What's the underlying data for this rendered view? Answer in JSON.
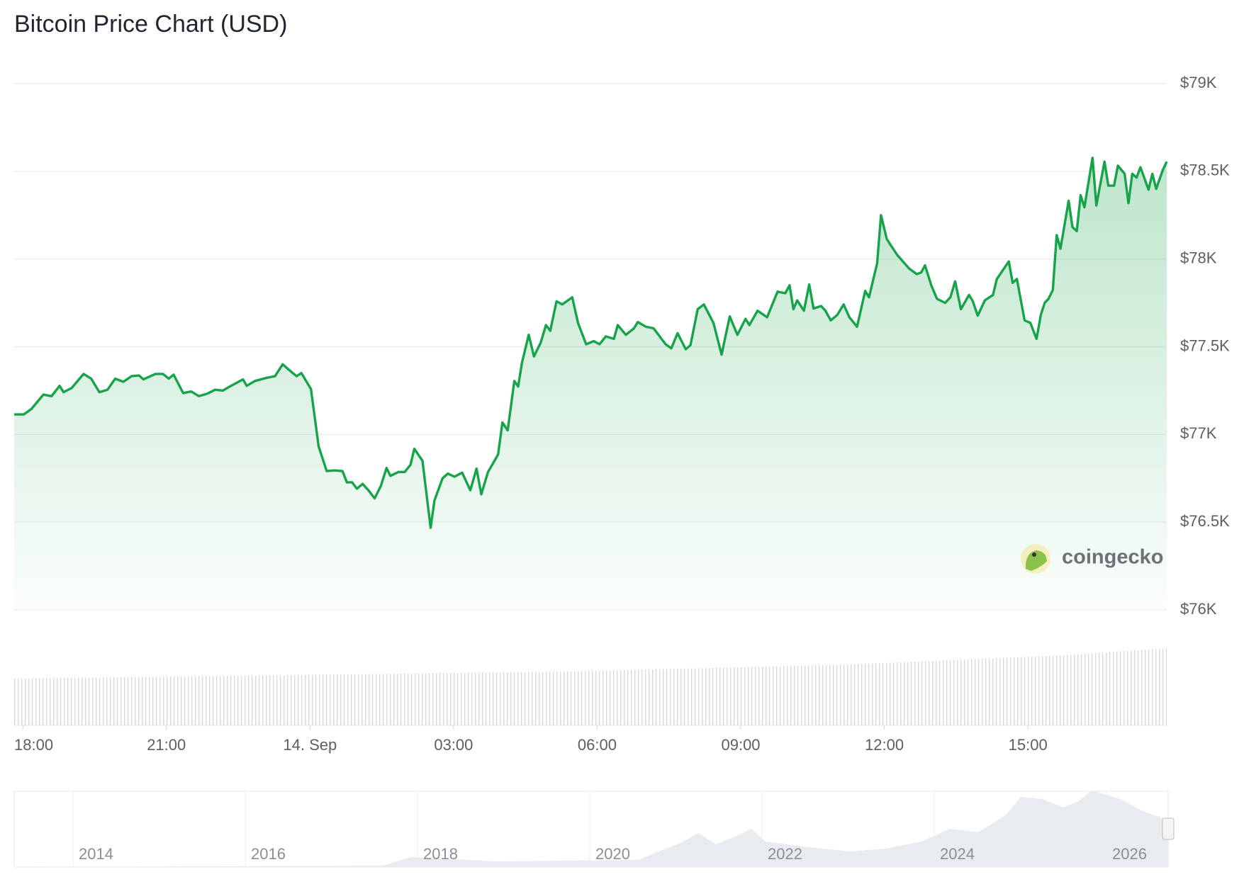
{
  "chart_data": {
    "type": "line",
    "title": "Bitcoin Price Chart (USD)",
    "watermark": "coingecko",
    "xlim": [
      -6.18,
      17.9
    ],
    "xticks": [
      {
        "value": -6,
        "label": "18:00"
      },
      {
        "value": -3,
        "label": "21:00"
      },
      {
        "value": 0,
        "label": "14. Sep"
      },
      {
        "value": 3,
        "label": "03:00"
      },
      {
        "value": 6,
        "label": "06:00"
      },
      {
        "value": 9,
        "label": "09:00"
      },
      {
        "value": 12,
        "label": "12:00"
      },
      {
        "value": 15,
        "label": "15:00"
      }
    ],
    "ylim": [
      76000,
      79000
    ],
    "yticks": [
      {
        "value": 76000,
        "label": "$76K"
      },
      {
        "value": 76500,
        "label": "$76.5K"
      },
      {
        "value": 77000,
        "label": "$77K"
      },
      {
        "value": 77500,
        "label": "$77.5K"
      },
      {
        "value": 78000,
        "label": "$78K"
      },
      {
        "value": 78500,
        "label": "$78.5K"
      },
      {
        "value": 79000,
        "label": "$79K"
      }
    ],
    "grid": true,
    "x": [
      -6.18,
      -5.98,
      -5.82,
      -5.57,
      -5.4,
      -5.23,
      -5.15,
      -4.98,
      -4.73,
      -4.57,
      -4.4,
      -4.23,
      -4.07,
      -3.9,
      -3.73,
      -3.57,
      -3.48,
      -3.23,
      -3.07,
      -2.95,
      -2.85,
      -2.65,
      -2.48,
      -2.32,
      -2.15,
      -1.98,
      -1.82,
      -1.65,
      -1.4,
      -1.32,
      -1.15,
      -0.9,
      -0.73,
      -0.57,
      -0.4,
      -0.28,
      -0.18,
      0.02,
      0.18,
      0.35,
      0.52,
      0.68,
      0.77,
      0.88,
      0.98,
      1.1,
      1.22,
      1.35,
      1.48,
      1.6,
      1.68,
      1.85,
      1.98,
      2.1,
      2.18,
      2.35,
      2.52,
      2.6,
      2.77,
      2.88,
      3.02,
      3.18,
      3.35,
      3.48,
      3.58,
      3.72,
      3.93,
      4.02,
      4.13,
      4.27,
      4.35,
      4.43,
      4.57,
      4.68,
      4.82,
      4.93,
      5.02,
      5.15,
      5.27,
      5.48,
      5.6,
      5.77,
      5.93,
      6.05,
      6.18,
      6.35,
      6.43,
      6.6,
      6.77,
      6.85,
      7.02,
      7.18,
      7.43,
      7.55,
      7.68,
      7.85,
      7.95,
      8.1,
      8.23,
      8.43,
      8.6,
      8.77,
      8.93,
      9.1,
      9.18,
      9.35,
      9.55,
      9.77,
      9.93,
      10.02,
      10.1,
      10.18,
      10.32,
      10.43,
      10.52,
      10.68,
      10.77,
      10.88,
      11.02,
      11.15,
      11.27,
      11.43,
      11.6,
      11.68,
      11.85,
      11.93,
      12.05,
      12.27,
      12.52,
      12.68,
      12.77,
      12.85,
      12.98,
      13.1,
      13.27,
      13.38,
      13.48,
      13.6,
      13.77,
      13.85,
      13.95,
      14.1,
      14.27,
      14.35,
      14.6,
      14.68,
      14.77,
      14.93,
      15.05,
      15.18,
      15.27,
      15.35,
      15.43,
      15.52,
      15.6,
      15.68,
      15.85,
      15.93,
      16.02,
      16.1,
      16.18,
      16.35,
      16.43,
      16.6,
      16.68,
      16.8,
      16.88,
      17.02,
      17.1,
      17.18,
      17.27,
      17.35,
      17.52,
      17.6,
      17.68,
      17.82,
      17.9
    ],
    "series": [
      {
        "name": "Bitcoin",
        "color": "#17a34a",
        "values": [
          77114,
          77114,
          77145,
          77227,
          77218,
          77277,
          77241,
          77264,
          77345,
          77318,
          77241,
          77255,
          77318,
          77300,
          77332,
          77336,
          77314,
          77345,
          77345,
          77318,
          77341,
          77236,
          77245,
          77218,
          77232,
          77255,
          77250,
          77277,
          77314,
          77277,
          77305,
          77323,
          77332,
          77400,
          77359,
          77332,
          77350,
          77259,
          76932,
          76791,
          76795,
          76791,
          76727,
          76727,
          76691,
          76718,
          76682,
          76636,
          76705,
          76809,
          76764,
          76786,
          76786,
          76827,
          76918,
          76850,
          76468,
          76623,
          76750,
          76777,
          76759,
          76782,
          76682,
          76805,
          76659,
          76786,
          76886,
          77068,
          77023,
          77305,
          77273,
          77409,
          77568,
          77445,
          77523,
          77623,
          77591,
          77759,
          77741,
          77782,
          77636,
          77514,
          77532,
          77514,
          77559,
          77545,
          77623,
          77568,
          77605,
          77641,
          77614,
          77605,
          77514,
          77491,
          77577,
          77486,
          77509,
          77714,
          77741,
          77636,
          77455,
          77673,
          77568,
          77659,
          77623,
          77705,
          77668,
          77814,
          77805,
          77850,
          77714,
          77764,
          77705,
          77855,
          77718,
          77732,
          77705,
          77650,
          77682,
          77741,
          77668,
          77614,
          77818,
          77782,
          77977,
          78250,
          78114,
          78023,
          77945,
          77914,
          77923,
          77964,
          77850,
          77773,
          77750,
          77782,
          77873,
          77714,
          77795,
          77759,
          77677,
          77764,
          77795,
          77886,
          77986,
          77864,
          77886,
          77650,
          77636,
          77545,
          77682,
          77750,
          77773,
          77823,
          78136,
          78059,
          78332,
          78182,
          78159,
          78364,
          78295,
          78577,
          78305,
          78555,
          78418,
          78418,
          78532,
          78486,
          78318,
          78486,
          78464,
          78523,
          78395,
          78486,
          78400,
          78509,
          78555
        ]
      }
    ],
    "navigator_labels": [
      "2014",
      "2016",
      "2018",
      "2020",
      "2022",
      "2024",
      "2026"
    ]
  }
}
